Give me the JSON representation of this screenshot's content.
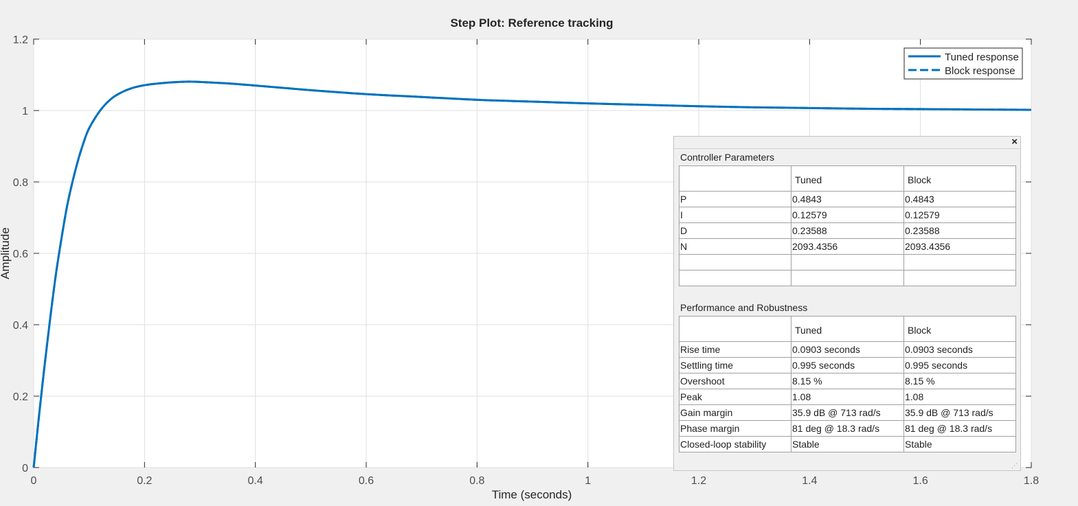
{
  "chart_data": {
    "type": "line",
    "title": "Step Plot: Reference tracking",
    "xlabel": "Time (seconds)",
    "ylabel": "Amplitude",
    "xlim": [
      0,
      1.8
    ],
    "ylim": [
      0,
      1.2
    ],
    "xticks": [
      "0",
      "0.2",
      "0.4",
      "0.6",
      "0.8",
      "1",
      "1.2",
      "1.4",
      "1.6",
      "1.8"
    ],
    "yticks": [
      "0",
      "0.2",
      "0.4",
      "0.6",
      "0.8",
      "1",
      "1.2"
    ],
    "grid": true,
    "legend_position": "top-right",
    "series": [
      {
        "name": "Tuned response",
        "style": "solid",
        "color": "#0072bd",
        "x": [
          0,
          0.01,
          0.02,
          0.03,
          0.04,
          0.05,
          0.06,
          0.07,
          0.08,
          0.09,
          0.1,
          0.12,
          0.14,
          0.16,
          0.18,
          0.2,
          0.22,
          0.25,
          0.28,
          0.3,
          0.35,
          0.4,
          0.5,
          0.6,
          0.7,
          0.8,
          0.9,
          1.0,
          1.1,
          1.2,
          1.3,
          1.4,
          1.5,
          1.6,
          1.7,
          1.8
        ],
        "y": [
          0,
          0.15,
          0.29,
          0.42,
          0.54,
          0.64,
          0.73,
          0.8,
          0.86,
          0.91,
          0.95,
          1.0,
          1.033,
          1.052,
          1.064,
          1.071,
          1.075,
          1.079,
          1.081,
          1.08,
          1.076,
          1.07,
          1.057,
          1.046,
          1.038,
          1.03,
          1.025,
          1.02,
          1.016,
          1.012,
          1.009,
          1.007,
          1.005,
          1.004,
          1.003,
          1.002
        ]
      },
      {
        "name": "Block response",
        "style": "dashed",
        "color": "#0072bd",
        "x": [
          0,
          0.01,
          0.02,
          0.03,
          0.04,
          0.05,
          0.06,
          0.07,
          0.08,
          0.09,
          0.1,
          0.12,
          0.14,
          0.16,
          0.18,
          0.2,
          0.22,
          0.25,
          0.28,
          0.3,
          0.35,
          0.4,
          0.5,
          0.6,
          0.7,
          0.8,
          0.9,
          1.0,
          1.1,
          1.2,
          1.3,
          1.4,
          1.5,
          1.6,
          1.7,
          1.8
        ],
        "y": [
          0,
          0.15,
          0.29,
          0.42,
          0.54,
          0.64,
          0.73,
          0.8,
          0.86,
          0.91,
          0.95,
          1.0,
          1.033,
          1.052,
          1.064,
          1.071,
          1.075,
          1.079,
          1.081,
          1.08,
          1.076,
          1.07,
          1.057,
          1.046,
          1.038,
          1.03,
          1.025,
          1.02,
          1.016,
          1.012,
          1.009,
          1.007,
          1.005,
          1.004,
          1.003,
          1.002
        ]
      }
    ]
  },
  "panel": {
    "close_label": "×",
    "controller": {
      "title": "Controller Parameters",
      "headers": [
        "",
        "Tuned",
        "Block"
      ],
      "rows": [
        [
          "P",
          "0.4843",
          "0.4843"
        ],
        [
          "I",
          "0.12579",
          "0.12579"
        ],
        [
          "D",
          "0.23588",
          "0.23588"
        ],
        [
          "N",
          "2093.4356",
          "2093.4356"
        ],
        [
          "",
          "",
          ""
        ],
        [
          "",
          "",
          ""
        ]
      ]
    },
    "performance": {
      "title": "Performance and Robustness",
      "headers": [
        "",
        "Tuned",
        "Block"
      ],
      "rows": [
        [
          "Rise time",
          "0.0903 seconds",
          "0.0903 seconds"
        ],
        [
          "Settling time",
          "0.995 seconds",
          "0.995 seconds"
        ],
        [
          "Overshoot",
          "8.15 %",
          "8.15 %"
        ],
        [
          "Peak",
          "1.08",
          "1.08"
        ],
        [
          "Gain margin",
          "35.9 dB @ 713 rad/s",
          "35.9 dB @ 713 rad/s"
        ],
        [
          "Phase margin",
          "81 deg @ 18.3 rad/s",
          "81 deg @ 18.3 rad/s"
        ],
        [
          "Closed-loop stability",
          "Stable",
          "Stable"
        ]
      ]
    }
  }
}
